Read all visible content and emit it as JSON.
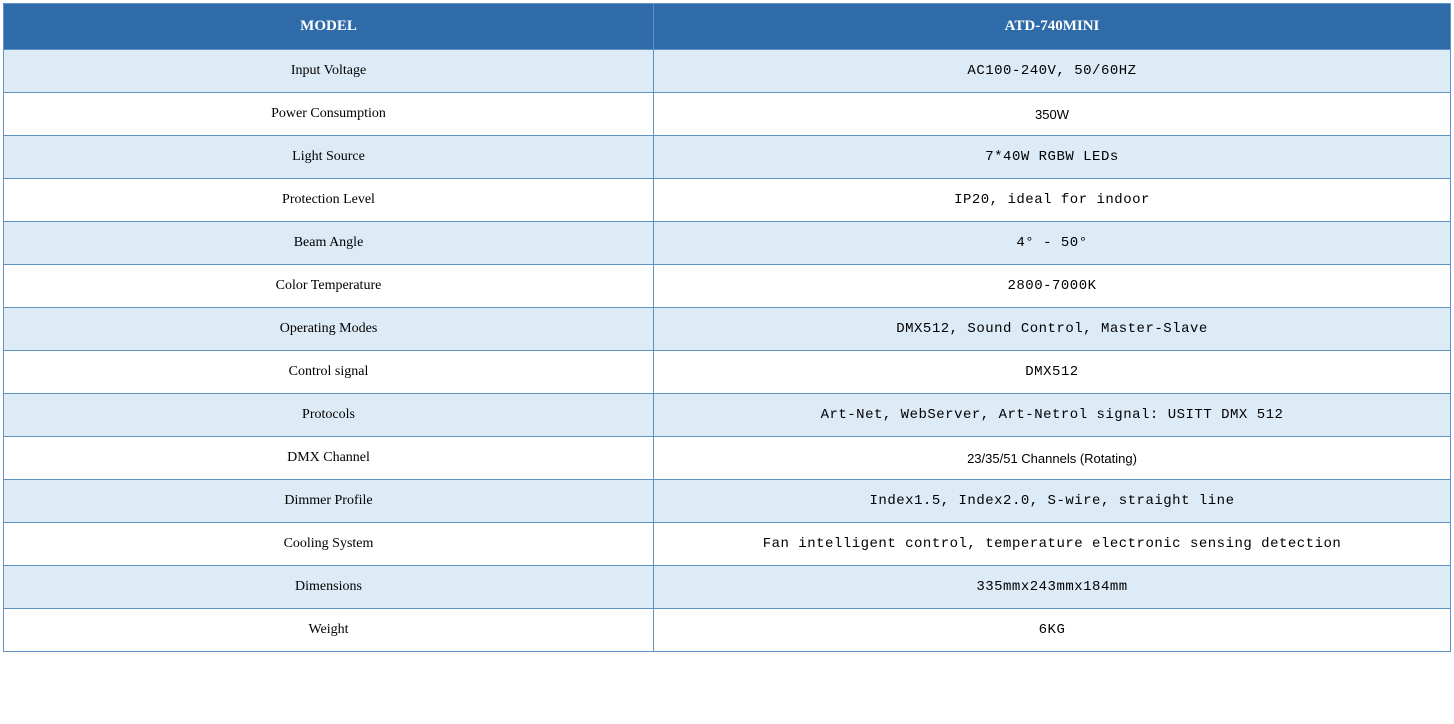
{
  "table": {
    "header_bg": "#2e6ba8",
    "header_color": "#ffffff",
    "border_color": "#6091c3",
    "row_alt_bg": "#dcebf6",
    "row_bg": "#ffffff",
    "columns": [
      "MODEL",
      "ATD-740MINI"
    ],
    "col_widths": [
      "650px",
      "auto"
    ],
    "rows": [
      {
        "label": "Input Voltage",
        "value": "AC100-240V, 50/60HZ",
        "alt": true,
        "value_font": "mono"
      },
      {
        "label": "Power Consumption",
        "value": "350W",
        "alt": false,
        "value_font": "sans"
      },
      {
        "label": "Light Source",
        "value": "7*40W RGBW LEDs",
        "alt": true,
        "value_font": "mono"
      },
      {
        "label": "Protection Level",
        "value": "IP20, ideal for indoor",
        "alt": false,
        "value_font": "mono"
      },
      {
        "label": "Beam Angle",
        "value": "4° - 50°",
        "alt": true,
        "value_font": "mono"
      },
      {
        "label": "Color Temperature",
        "value": "2800-7000K",
        "alt": false,
        "value_font": "mono"
      },
      {
        "label": "Operating Modes",
        "value": "DMX512, Sound Control, Master-Slave",
        "alt": true,
        "value_font": "mono"
      },
      {
        "label": "Control signal",
        "value": "DMX512",
        "alt": false,
        "value_font": "mono"
      },
      {
        "label": "Protocols",
        "value": "Art-Net, WebServer, Art-Netrol signal: USITT DMX 512",
        "alt": true,
        "value_font": "mono"
      },
      {
        "label": "DMX Channel",
        "value": "23/35/51 Channels (Rotating)",
        "alt": false,
        "value_font": "sans"
      },
      {
        "label": "Dimmer Profile",
        "value": "Index1.5, Index2.0, S-wire, straight line",
        "alt": true,
        "value_font": "mono"
      },
      {
        "label": "Cooling System",
        "value": "Fan intelligent control, temperature electronic sensing detection",
        "alt": false,
        "value_font": "mono"
      },
      {
        "label": "Dimensions",
        "value": "335mmx243mmx184mm",
        "alt": true,
        "value_font": "mono"
      },
      {
        "label": "Weight",
        "value": "6KG",
        "alt": false,
        "value_font": "mono"
      }
    ]
  }
}
